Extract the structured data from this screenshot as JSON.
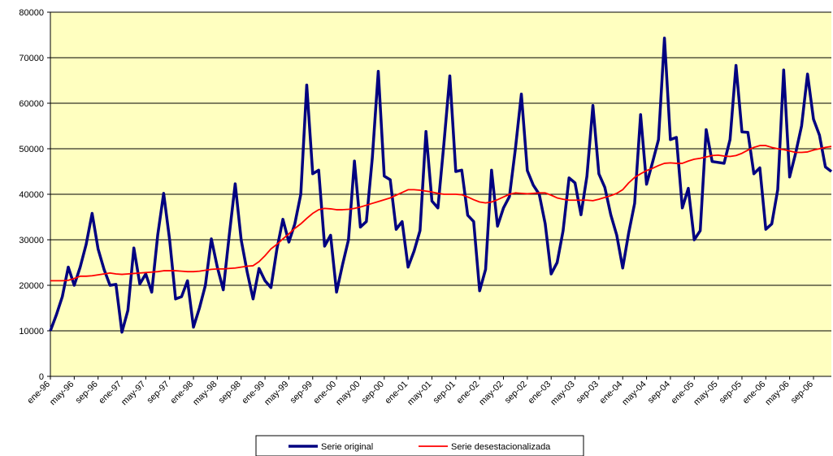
{
  "chart_data": {
    "type": "line",
    "categories": [
      "ene-96",
      null,
      null,
      null,
      "may-96",
      null,
      null,
      null,
      "sep-96",
      null,
      null,
      null,
      "ene-97",
      null,
      null,
      null,
      "may-97",
      null,
      null,
      null,
      "sep-97",
      null,
      null,
      null,
      "ene-98",
      null,
      null,
      null,
      "may-98",
      null,
      null,
      null,
      "sep-98",
      null,
      null,
      null,
      "ene-99",
      null,
      null,
      null,
      "may-99",
      null,
      null,
      null,
      "sep-99",
      null,
      null,
      null,
      "ene-00",
      null,
      null,
      null,
      "may-00",
      null,
      null,
      null,
      "sep-00",
      null,
      null,
      null,
      "ene-01",
      null,
      null,
      null,
      "may-01",
      null,
      null,
      null,
      "sep-01",
      null,
      null,
      null,
      "ene-02",
      null,
      null,
      null,
      "may-02",
      null,
      null,
      null,
      "sep-02",
      null,
      null,
      null,
      "ene-03",
      null,
      null,
      null,
      "may-03",
      null,
      null,
      null,
      "sep-03",
      null,
      null,
      null,
      "ene-04",
      null,
      null,
      null,
      "may-04",
      null,
      null,
      null,
      "sep-04",
      null,
      null,
      null,
      "ene-05",
      null,
      null,
      null,
      "may-05",
      null,
      null,
      null,
      "sep-05",
      null,
      null,
      null,
      "ene-06",
      null,
      null,
      null,
      "may-06",
      null,
      null,
      null,
      "sep-06",
      null,
      null,
      null
    ],
    "series": [
      {
        "name": "Serie original",
        "color": "#000080",
        "values": [
          10000,
          13500,
          17500,
          24000,
          20000,
          24000,
          29000,
          35800,
          28000,
          23500,
          20000,
          20200,
          9700,
          14500,
          28200,
          20300,
          22500,
          18500,
          31000,
          40200,
          30000,
          17000,
          17500,
          21000,
          10800,
          15000,
          20000,
          30200,
          24000,
          19000,
          31000,
          42300,
          30000,
          23000,
          17000,
          23700,
          21000,
          19500,
          28000,
          34500,
          29500,
          33500,
          40000,
          64000,
          44500,
          45300,
          28600,
          31000,
          18500,
          24500,
          30000,
          47300,
          32800,
          34000,
          48000,
          67000,
          44000,
          43200,
          32300,
          34000,
          24000,
          27500,
          32000,
          53800,
          38500,
          37000,
          51000,
          66000,
          45000,
          45300,
          35400,
          34000,
          18800,
          23500,
          45300,
          33000,
          37000,
          39500,
          50000,
          62000,
          45200,
          42000,
          40000,
          33500,
          22500,
          25000,
          32000,
          43600,
          42500,
          35500,
          44000,
          59500,
          44500,
          41500,
          35500,
          31000,
          23800,
          31500,
          38000,
          57500,
          42200,
          47000,
          52000,
          74300,
          52000,
          52500,
          37000,
          41300,
          30000,
          32000,
          54200,
          47200,
          47000,
          46800,
          52000,
          68300,
          53700,
          53600,
          44500,
          45800,
          32300,
          33500,
          41000,
          67300,
          43800,
          49000,
          55000,
          66400,
          56500,
          53000,
          46000,
          45000
        ]
      },
      {
        "name": "Serie desestacionalizada",
        "color": "#ff0000",
        "values": [
          21000,
          21000,
          21000,
          21100,
          21500,
          22000,
          22000,
          22100,
          22300,
          22500,
          22700,
          22500,
          22400,
          22500,
          22600,
          22700,
          22800,
          22900,
          23000,
          23200,
          23200,
          23200,
          23100,
          23000,
          23000,
          23100,
          23300,
          23500,
          23600,
          23600,
          23700,
          23800,
          24000,
          24200,
          24300,
          25200,
          26500,
          28000,
          29000,
          30200,
          31300,
          32500,
          33500,
          34700,
          35800,
          36600,
          36900,
          36800,
          36600,
          36600,
          36700,
          36900,
          37200,
          37600,
          38000,
          38400,
          38800,
          39200,
          39800,
          40400,
          41000,
          41000,
          40900,
          40700,
          40500,
          40200,
          40000,
          40000,
          40000,
          39900,
          39400,
          38800,
          38300,
          38100,
          38300,
          38800,
          39400,
          40000,
          40300,
          40200,
          40100,
          40200,
          40300,
          40300,
          39800,
          39200,
          38900,
          38700,
          38700,
          38700,
          38700,
          38600,
          38900,
          39300,
          39700,
          40200,
          41000,
          42500,
          43700,
          44500,
          45200,
          45700,
          46300,
          46800,
          46900,
          46800,
          46800,
          47300,
          47700,
          47900,
          48200,
          48500,
          48600,
          48400,
          48300,
          48500,
          49000,
          49700,
          50300,
          50700,
          50700,
          50300,
          50000,
          49800,
          49500,
          49200,
          49200,
          49300,
          49700,
          50000,
          50300,
          50500
        ]
      }
    ],
    "ylim": [
      0,
      80000
    ],
    "yticks": [
      0,
      10000,
      20000,
      30000,
      40000,
      50000,
      60000,
      70000,
      80000
    ],
    "grid": true,
    "legend": "bottom"
  }
}
